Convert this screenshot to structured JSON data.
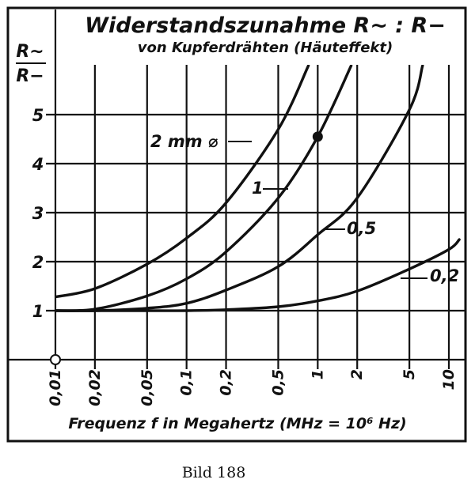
{
  "chart_data": {
    "type": "line",
    "title": "Widerstandszunahme R∼ : R−",
    "subtitle": "von Kupferdrähten (Häuteffekt)",
    "ylabel_num": "R∼",
    "ylabel_den": "R−",
    "xlabel": "Frequenz f in Megahertz (MHz = 10⁶ Hz)",
    "caption": "Bild 188",
    "x_scale": "log",
    "xlim": [
      0.01,
      12
    ],
    "ylim": [
      0,
      6
    ],
    "grid": true,
    "x_ticks": [
      {
        "value": 0.01,
        "label": "0,01"
      },
      {
        "value": 0.02,
        "label": "0,02"
      },
      {
        "value": 0.05,
        "label": "0,05"
      },
      {
        "value": 0.1,
        "label": "0,1"
      },
      {
        "value": 0.2,
        "label": "0,2"
      },
      {
        "value": 0.5,
        "label": "0,5"
      },
      {
        "value": 1,
        "label": "1"
      },
      {
        "value": 2,
        "label": "2"
      },
      {
        "value": 5,
        "label": "5"
      },
      {
        "value": 10,
        "label": "10"
      }
    ],
    "y_ticks": [
      {
        "value": 1,
        "label": "1"
      },
      {
        "value": 2,
        "label": "2"
      },
      {
        "value": 3,
        "label": "3"
      },
      {
        "value": 4,
        "label": "4"
      },
      {
        "value": 5,
        "label": "5"
      }
    ],
    "series": [
      {
        "name": "2 mm ⌀",
        "x": [
          0.01,
          0.02,
          0.05,
          0.1,
          0.2,
          0.5,
          0.85
        ],
        "y": [
          1.28,
          1.45,
          1.95,
          2.48,
          3.2,
          4.7,
          6.0
        ]
      },
      {
        "name": "1",
        "x": [
          0.01,
          0.02,
          0.05,
          0.1,
          0.2,
          0.5,
          1,
          1.8
        ],
        "y": [
          1.0,
          1.03,
          1.3,
          1.65,
          2.2,
          3.3,
          4.55,
          6.0
        ]
      },
      {
        "name": "0,5",
        "x": [
          0.01,
          0.02,
          0.05,
          0.1,
          0.2,
          0.5,
          1,
          2,
          5,
          6.3
        ],
        "y": [
          1.0,
          1.0,
          1.05,
          1.15,
          1.42,
          1.9,
          2.55,
          3.3,
          5.1,
          6.0
        ]
      },
      {
        "name": "0,2",
        "x": [
          0.01,
          0.05,
          0.1,
          0.2,
          0.5,
          1,
          2,
          5,
          10,
          12
        ],
        "y": [
          1.0,
          1.0,
          1.0,
          1.02,
          1.08,
          1.2,
          1.4,
          1.85,
          2.25,
          2.45
        ]
      }
    ],
    "marked_point": {
      "x": 1,
      "y": 4.55
    }
  }
}
